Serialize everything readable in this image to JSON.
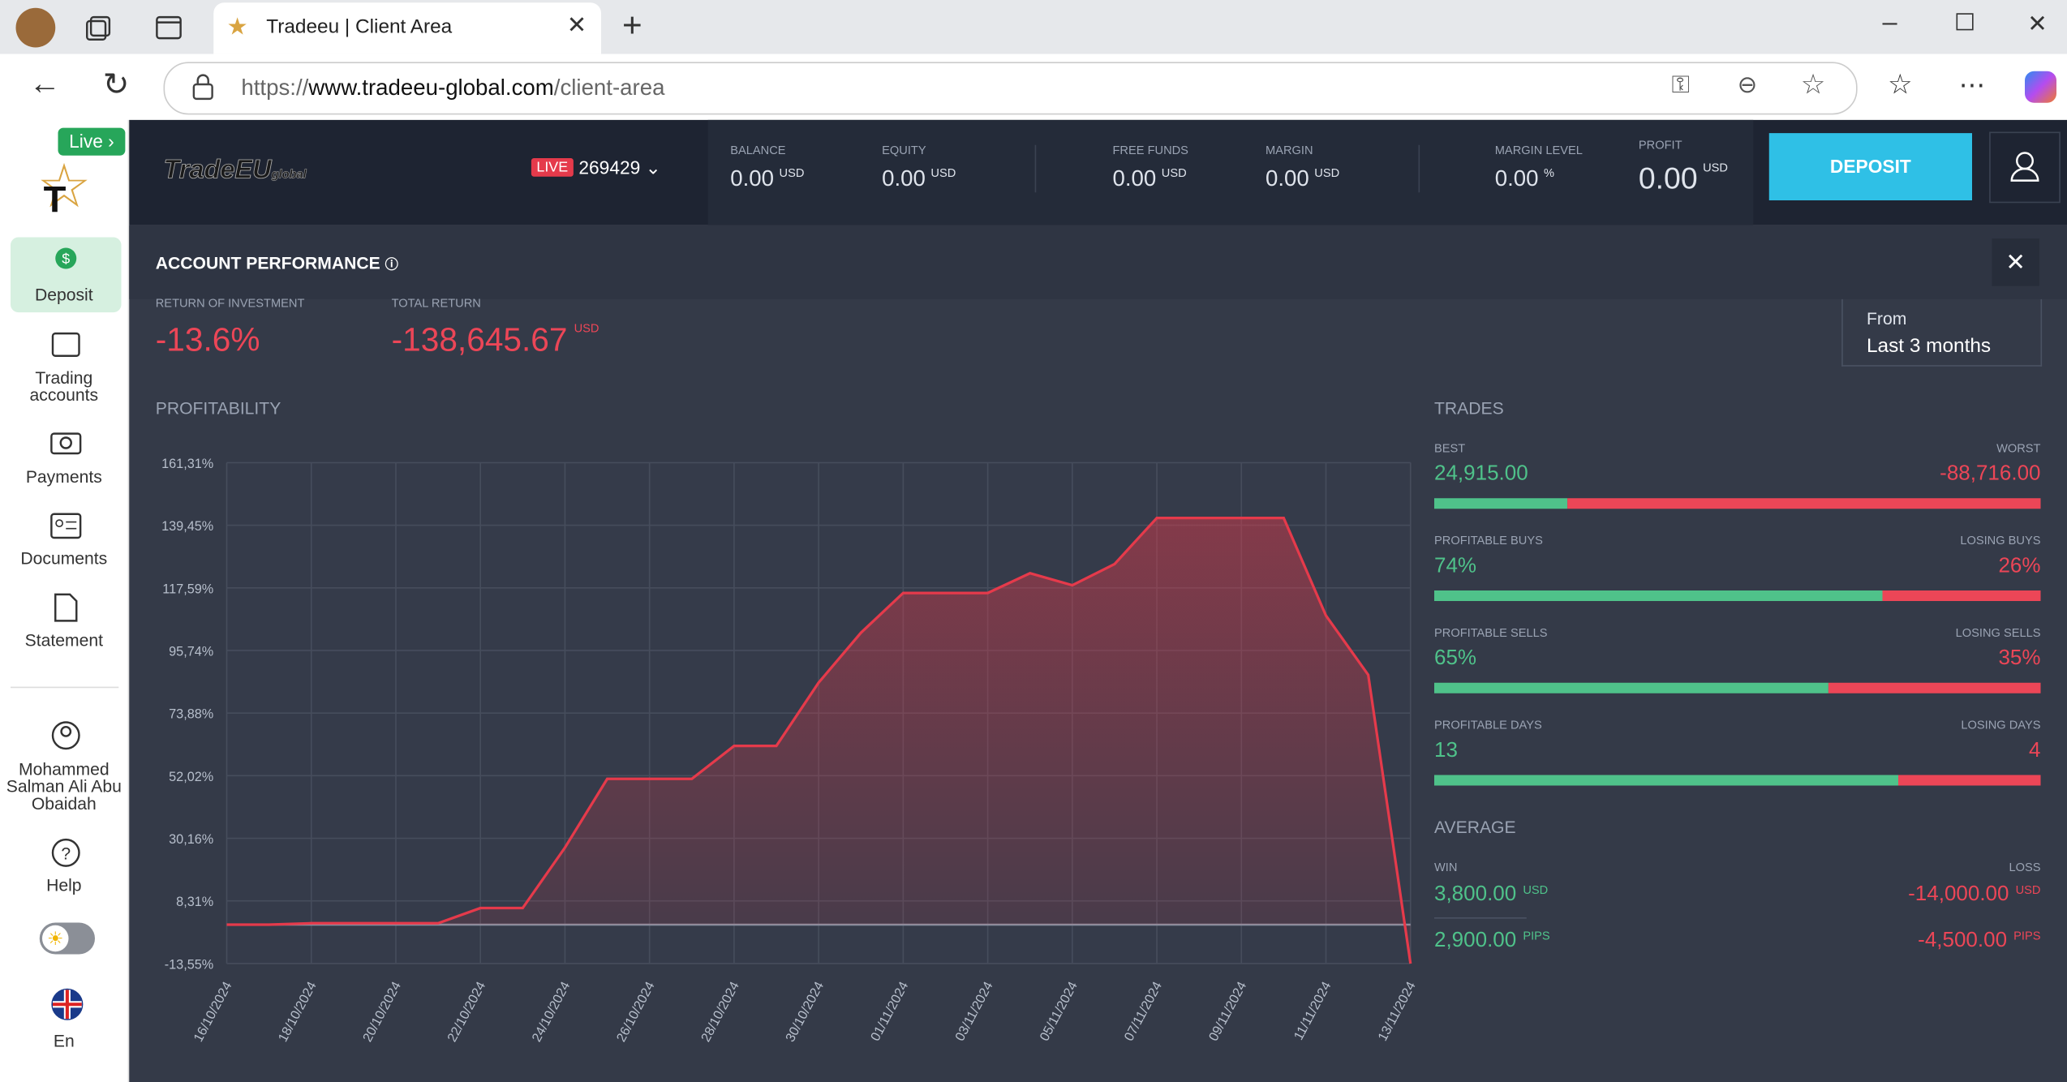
{
  "browser": {
    "tab_title": "Tradeeu | Client Area",
    "url_scheme": "https://",
    "url_host": "www.tradeeu-global.com",
    "url_path": "/client-area"
  },
  "sidebar": {
    "badge": "Live",
    "items": [
      "Deposit",
      "Trading accounts",
      "Payments",
      "Documents",
      "Statement"
    ],
    "user": "Mohammed Salman Ali Abu Obaidah",
    "help": "Help",
    "language": "En"
  },
  "header": {
    "logo": "TradeEU",
    "logo_suffix": "global",
    "account_type": "LIVE",
    "account_number": "269429",
    "stats": [
      {
        "label": "BALANCE",
        "value": "0.00",
        "unit": "USD"
      },
      {
        "label": "EQUITY",
        "value": "0.00",
        "unit": "USD"
      },
      {
        "label": "FREE FUNDS",
        "value": "0.00",
        "unit": "USD"
      },
      {
        "label": "MARGIN",
        "value": "0.00",
        "unit": "USD"
      },
      {
        "label": "MARGIN LEVEL",
        "value": "0.00",
        "unit": "%"
      },
      {
        "label": "PROFIT",
        "value": "0.00",
        "unit": "USD"
      }
    ],
    "deposit_button": "DEPOSIT"
  },
  "performance": {
    "title": "ACCOUNT PERFORMANCE",
    "roi_label": "RETURN OF INVESTMENT",
    "roi": "-13.6%",
    "total_return_label": "TOTAL RETURN",
    "total_return": "-138,645.67",
    "total_return_unit": "USD",
    "period_label": "From",
    "period": "Last 3 months"
  },
  "chart_data": {
    "type": "line",
    "title": "PROFITABILITY",
    "categories": [
      "16/10/2024",
      null,
      "18/10/2024",
      null,
      "20/10/2024",
      null,
      "22/10/2024",
      null,
      "24/10/2024",
      null,
      "26/10/2024",
      null,
      "28/10/2024",
      null,
      "30/10/2024",
      null,
      "01/11/2024",
      null,
      "03/11/2024",
      null,
      "05/11/2024",
      null,
      "07/11/2024",
      null,
      "09/11/2024",
      null,
      "11/11/2024",
      null,
      "13/11/2024"
    ],
    "series": [
      {
        "name": "Profitability",
        "color": "#e53a4b",
        "values": [
          0,
          0,
          0.5,
          0.5,
          0.5,
          0.5,
          5.8,
          5.8,
          26.9,
          50.9,
          50.9,
          50.9,
          62.4,
          62.4,
          84.5,
          101.9,
          115.8,
          115.8,
          115.8,
          122.7,
          118.5,
          125.9,
          142.0,
          142.0,
          142.0,
          142.0,
          107.9,
          87.2,
          -13.6
        ]
      }
    ],
    "ylim": [
      -13.55,
      161.31
    ],
    "yticks": [
      {
        "value": -13.55,
        "label": "-13,55%"
      },
      {
        "value": 8.31,
        "label": "8,31%"
      },
      {
        "value": 30.16,
        "label": "30,16%"
      },
      {
        "value": 52.02,
        "label": "52,02%"
      },
      {
        "value": 73.88,
        "label": "73,88%"
      },
      {
        "value": 95.74,
        "label": "95,74%"
      },
      {
        "value": 117.59,
        "label": "117,59%"
      },
      {
        "value": 139.45,
        "label": "139,45%"
      },
      {
        "value": 161.31,
        "label": "161,31%"
      }
    ],
    "grid": true
  },
  "trades": {
    "title": "TRADES",
    "rows": [
      {
        "left_name": "BEST",
        "left_value": 24915,
        "left_text": "24,915.00",
        "right_name": "WORST",
        "right_value": -88716,
        "right_text": "-88,716.00"
      },
      {
        "left_name": "PROFITABLE BUYS",
        "left_value": 74,
        "left_text": "74%",
        "right_name": "LOSING BUYS",
        "right_value": 26,
        "right_text": "26%"
      },
      {
        "left_name": "PROFITABLE SELLS",
        "left_value": 65,
        "left_text": "65%",
        "right_name": "LOSING SELLS",
        "right_value": 35,
        "right_text": "35%"
      },
      {
        "left_name": "PROFITABLE DAYS",
        "left_value": 13,
        "right_name": "LOSING DAYS",
        "right_value": 4
      }
    ]
  },
  "average": {
    "title": "AVERAGE",
    "win_label": "WIN",
    "loss_label": "LOSS",
    "rows": [
      {
        "win": "3,800.00",
        "loss": "-14,000.00",
        "unit": "USD"
      },
      {
        "win": "2,900.00",
        "loss": "-4,500.00",
        "unit": "PIPS"
      }
    ]
  }
}
